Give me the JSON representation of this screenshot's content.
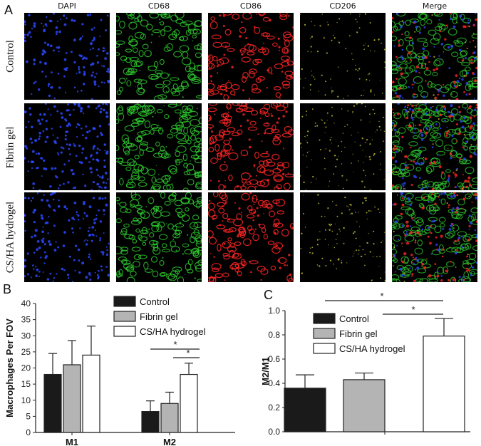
{
  "panel_a": {
    "letter": "A",
    "columns": [
      "DAPI",
      "CD68",
      "CD86",
      "CD206",
      "Merge"
    ],
    "rows": [
      "Control",
      "Fibrin gel",
      "CS/HA hydrogel"
    ],
    "colors": {
      "dapi": "#2a49ff",
      "cd68": "#2fd22f",
      "cd86": "#ff2424",
      "cd206": "#d8d23a",
      "background": "#000000"
    }
  },
  "panel_b": {
    "letter": "B",
    "significance": [
      "*",
      "*"
    ],
    "chart_data": {
      "type": "bar",
      "ylabel": "Macrophages Per FOV",
      "xlabel": "",
      "categories": [
        "M1",
        "M2"
      ],
      "ylim": [
        0,
        40
      ],
      "yticks": [
        0,
        5,
        10,
        15,
        20,
        25,
        30,
        35,
        40
      ],
      "series": [
        {
          "name": "Control",
          "values": [
            18,
            6.5
          ],
          "errors": [
            6.5,
            3.3
          ],
          "color": "#1a1a1a"
        },
        {
          "name": "Fibrin gel",
          "values": [
            21,
            9
          ],
          "errors": [
            7.5,
            3.5
          ],
          "color": "#b4b4b4"
        },
        {
          "name": "CS/HA hydrogel",
          "values": [
            24,
            18
          ],
          "errors": [
            9,
            3.5
          ],
          "color": "#ffffff"
        }
      ],
      "legend": "top-right"
    }
  },
  "panel_c": {
    "letter": "C",
    "significance": [
      "*",
      "*"
    ],
    "chart_data": {
      "type": "bar",
      "ylabel": "M2/M1",
      "xlabel": "",
      "categories": [
        "Control",
        "Fibrin gel",
        "CS/HA hydrogel"
      ],
      "ylim": [
        0,
        1.0
      ],
      "yticks": [
        "0.0",
        "0.2",
        "0.4",
        "0.6",
        "0.8",
        "1.0"
      ],
      "series": [
        {
          "name": "M2/M1",
          "values": [
            0.36,
            0.43,
            0.79
          ],
          "errors": [
            0.11,
            0.055,
            0.145
          ],
          "colors": [
            "#1a1a1a",
            "#b4b4b4",
            "#ffffff"
          ]
        }
      ],
      "legend": "top-left"
    }
  }
}
